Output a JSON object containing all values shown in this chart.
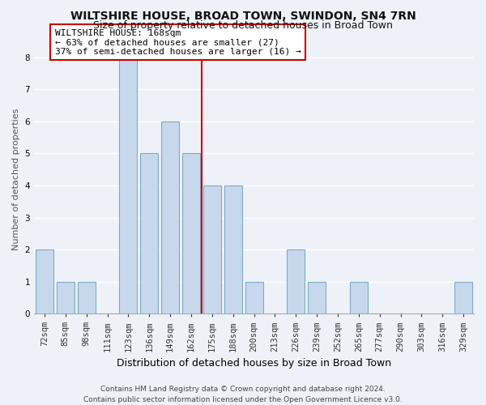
{
  "title": "WILTSHIRE HOUSE, BROAD TOWN, SWINDON, SN4 7RN",
  "subtitle": "Size of property relative to detached houses in Broad Town",
  "xlabel": "Distribution of detached houses by size in Broad Town",
  "ylabel": "Number of detached properties",
  "categories": [
    "72sqm",
    "85sqm",
    "98sqm",
    "111sqm",
    "123sqm",
    "136sqm",
    "149sqm",
    "162sqm",
    "175sqm",
    "188sqm",
    "200sqm",
    "213sqm",
    "226sqm",
    "239sqm",
    "252sqm",
    "265sqm",
    "277sqm",
    "290sqm",
    "303sqm",
    "316sqm",
    "329sqm"
  ],
  "values": [
    2,
    1,
    1,
    0,
    8,
    5,
    6,
    5,
    4,
    4,
    1,
    0,
    2,
    1,
    0,
    1,
    0,
    0,
    0,
    0,
    1
  ],
  "bar_color": "#c8d8ec",
  "bar_edge_color": "#7aaac8",
  "highlight_index": 7,
  "highlight_line_color": "#cc0000",
  "highlight_box_color": "#cc0000",
  "annotation_lines": [
    "WILTSHIRE HOUSE: 168sqm",
    "← 63% of detached houses are smaller (27)",
    "37% of semi-detached houses are larger (16) →"
  ],
  "ylim": [
    0,
    8.4
  ],
  "yticks": [
    0,
    1,
    2,
    3,
    4,
    5,
    6,
    7,
    8
  ],
  "footer_line1": "Contains HM Land Registry data © Crown copyright and database right 2024.",
  "footer_line2": "Contains public sector information licensed under the Open Government Licence v3.0.",
  "background_color": "#eef2f8",
  "grid_color": "#ffffff",
  "title_fontsize": 10,
  "subtitle_fontsize": 9,
  "xlabel_fontsize": 9,
  "ylabel_fontsize": 8,
  "tick_fontsize": 7.5,
  "annotation_fontsize": 8,
  "footer_fontsize": 6.5
}
